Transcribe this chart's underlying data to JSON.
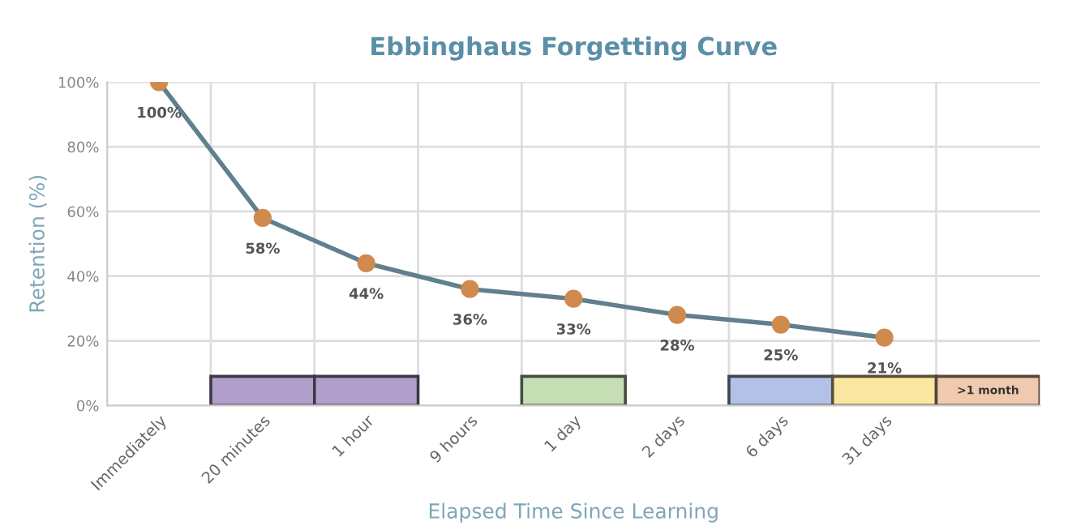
{
  "chart_data": {
    "type": "line",
    "title": "Ebbinghaus Forgetting Curve",
    "xlabel": "Elapsed Time Since Learning",
    "ylabel": "Retention (%)",
    "categories": [
      "Immediately",
      "20 minutes",
      "1 hour",
      "9 hours",
      "1 day",
      "2 days",
      "6 days",
      "31 days",
      null
    ],
    "series": [
      {
        "color": "#60808e",
        "values": [
          100,
          58,
          44,
          36,
          33,
          28,
          25,
          21,
          null
        ]
      },
      {
        "type": "bar",
        "colors": [
          "#b19fcb",
          "#b19fcb",
          "#b19fcb",
          "#c6deb3",
          "#c6deb3",
          "#c6deb3",
          "#b3c1e6",
          "#fbe7a2",
          "#f0c9ae"
        ],
        "values": [
          null,
          9,
          9,
          null,
          9,
          null,
          9,
          9,
          9
        ]
      }
    ],
    "value_labels": [
      "100%",
      "58%",
      "44%",
      "36%",
      "33%",
      "28%",
      "25%",
      "21%",
      null
    ],
    "ylim": [
      0,
      100
    ],
    "yticks": [
      {
        "value": 0,
        "label": "0%"
      },
      {
        "value": 20,
        "label": "20%"
      },
      {
        "value": 40,
        "label": "40%"
      },
      {
        "value": 60,
        "label": "60%"
      },
      {
        "value": 80,
        "label": "80%"
      },
      {
        "value": 100,
        "label": "100%"
      }
    ],
    "marker": "circle",
    "grid": true,
    "annotations": [
      ">1 month"
    ]
  }
}
